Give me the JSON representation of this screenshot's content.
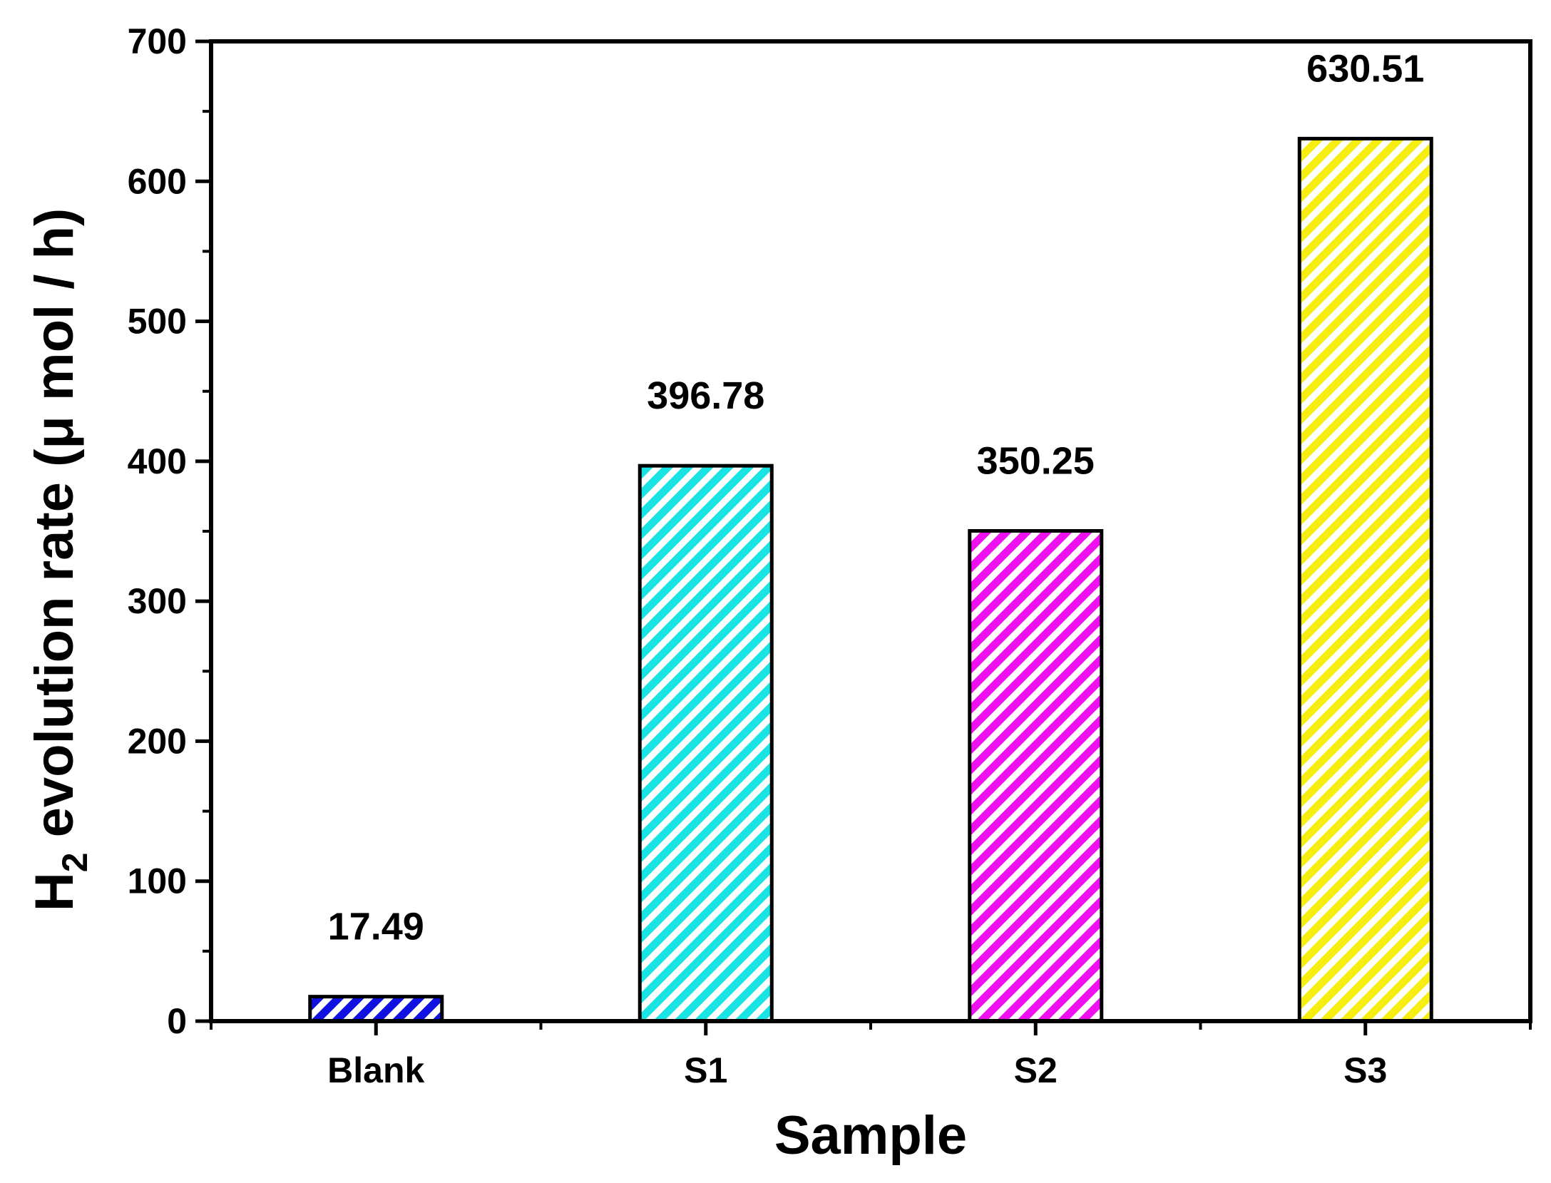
{
  "chart_data": {
    "type": "bar",
    "title": "",
    "xlabel": "Sample",
    "ylabel": {
      "prefix": "H",
      "subscript": "2",
      "suffix": " evolution rate (μ mol / h)"
    },
    "categories": [
      "Blank",
      "S1",
      "S2",
      "S3"
    ],
    "values": [
      17.49,
      396.78,
      350.25,
      630.51
    ],
    "value_labels": [
      "17.49",
      "396.78",
      "350.25",
      "630.51"
    ],
    "colors": [
      "#1010e0",
      "#19e3e3",
      "#ee10ee",
      "#f5ee10"
    ],
    "fill_pattern": "diagonal-hatch",
    "ylim": [
      0,
      700
    ],
    "yticks": [
      0,
      100,
      200,
      300,
      400,
      500,
      600,
      700
    ],
    "ytick_labels": [
      "0",
      "100",
      "200",
      "300",
      "400",
      "500",
      "600",
      "700"
    ],
    "grid": false,
    "legend": "none"
  }
}
